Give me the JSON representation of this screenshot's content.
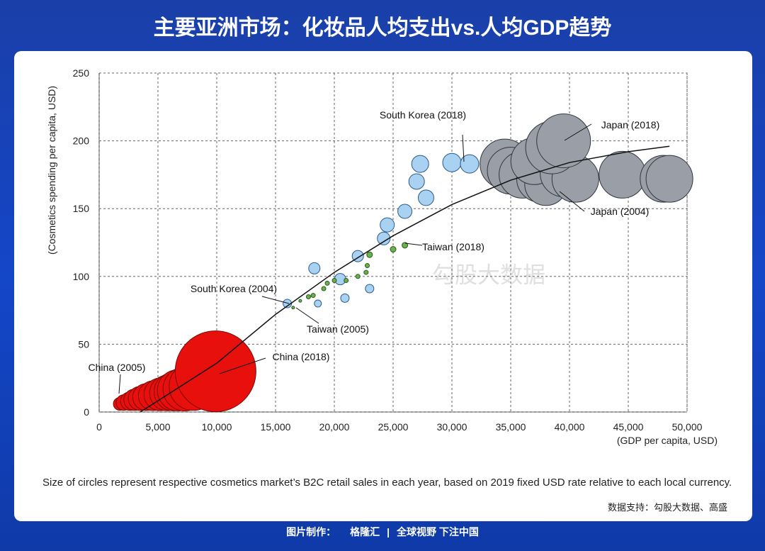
{
  "title": "主要亚洲市场：化妆品人均支出vs.人均GDP趋势",
  "chart_data": {
    "type": "bubble",
    "ylabel": "(Cosmetics spending per capita, USD)",
    "xlabel": "(GDP per capita, USD)",
    "xlim": [
      0,
      50000
    ],
    "ylim": [
      0,
      250
    ],
    "xticks": [
      0,
      {
        "value": 5000,
        "label": "5,000"
      },
      {
        "value": 10000,
        "label": "10,000"
      },
      {
        "value": 15000,
        "label": "15,000"
      },
      {
        "value": 20000,
        "label": "20,000"
      },
      {
        "value": 25000,
        "label": "25,000"
      },
      {
        "value": 30000,
        "label": "30,000"
      },
      {
        "value": 35000,
        "label": "35,000"
      },
      {
        "value": 40000,
        "label": "40,000"
      },
      {
        "value": 45000,
        "label": "45,000"
      },
      {
        "value": 50000,
        "label": "50,000"
      }
    ],
    "yticks": [
      0,
      50,
      100,
      150,
      200,
      250
    ],
    "grid": true,
    "series": [
      {
        "color": "#9a9ea6",
        "stroke": "#2f3640",
        "x": [
          34500,
          35000,
          36000,
          37500,
          38000,
          37000,
          39000,
          39500,
          40500,
          38500,
          44500,
          48000,
          48500,
          39500
        ],
        "y": [
          183,
          178,
          175,
          172,
          168,
          185,
          190,
          176,
          172,
          195,
          175,
          172,
          172,
          200
        ],
        "sizes": [
          35,
          33,
          33,
          33,
          30,
          33,
          35,
          33,
          33,
          37,
          33,
          33,
          33,
          38
        ]
      },
      {
        "color": "#a9d1f2",
        "stroke": "#2a5a8a",
        "x": [
          16000,
          18600,
          18300,
          20900,
          20500,
          23000,
          22000,
          24200,
          24500,
          26000,
          27800,
          27000,
          27300,
          30000,
          31500
        ],
        "y": [
          80,
          80,
          106,
          84,
          98,
          91,
          115,
          128,
          138,
          148,
          158,
          170,
          183,
          184,
          183
        ],
        "sizes": [
          6,
          5,
          8,
          6,
          8,
          6,
          8,
          9,
          10,
          10,
          11,
          11,
          12,
          13,
          13
        ]
      },
      {
        "color": "#6ab04c",
        "stroke": "#2d5a1e",
        "x": [
          16500,
          17100,
          17800,
          18200,
          19100,
          19400,
          20000,
          21000,
          22000,
          22700,
          22800,
          23000,
          25000,
          26000
        ],
        "y": [
          77,
          82,
          85,
          86,
          91,
          95,
          97,
          97,
          100,
          103,
          108,
          116,
          120,
          123
        ],
        "sizes": [
          2,
          2,
          3,
          3,
          3,
          3,
          3,
          3,
          3,
          3,
          3,
          4,
          4,
          4
        ]
      },
      {
        "color": "#e8100c",
        "stroke": "#7a0a08",
        "x": [
          1750,
          2100,
          2600,
          3000,
          3500,
          4000,
          4600,
          5200,
          5800,
          6300,
          6700,
          7300,
          8000,
          9900
        ],
        "y": [
          6,
          7,
          8,
          9,
          10,
          11,
          12,
          13,
          14,
          15,
          16,
          17,
          19,
          30
        ],
        "sizes": [
          9,
          11,
          13,
          15,
          17,
          19,
          21,
          23,
          25,
          27,
          29,
          31,
          34,
          57
        ]
      }
    ],
    "trend": {
      "x": [
        3500,
        10000,
        15000,
        20000,
        25000,
        30000,
        35000,
        40000,
        45000,
        48500
      ],
      "y": [
        0,
        36,
        72,
        103,
        130,
        153,
        171,
        184,
        192,
        196
      ]
    },
    "annotations": [
      "South Korea (2018)",
      "Japan (2018)",
      "Japan (2004)",
      "Taiwan (2018)",
      "South Korea (2004)",
      "Taiwan (2005)",
      "China (2018)",
      "China (2005)"
    ],
    "note": "Size of circles represent respective cosmetics market’s B2C retail sales in each year, based on 2019 fixed USD rate relative to each local currency.",
    "watermark": "勾股大数据"
  },
  "source": "数据支持：勾股大数据、高盛",
  "footer": {
    "made": "图片制作：",
    "brand": "格隆汇",
    "slogan": "全球视野 下注中国"
  }
}
